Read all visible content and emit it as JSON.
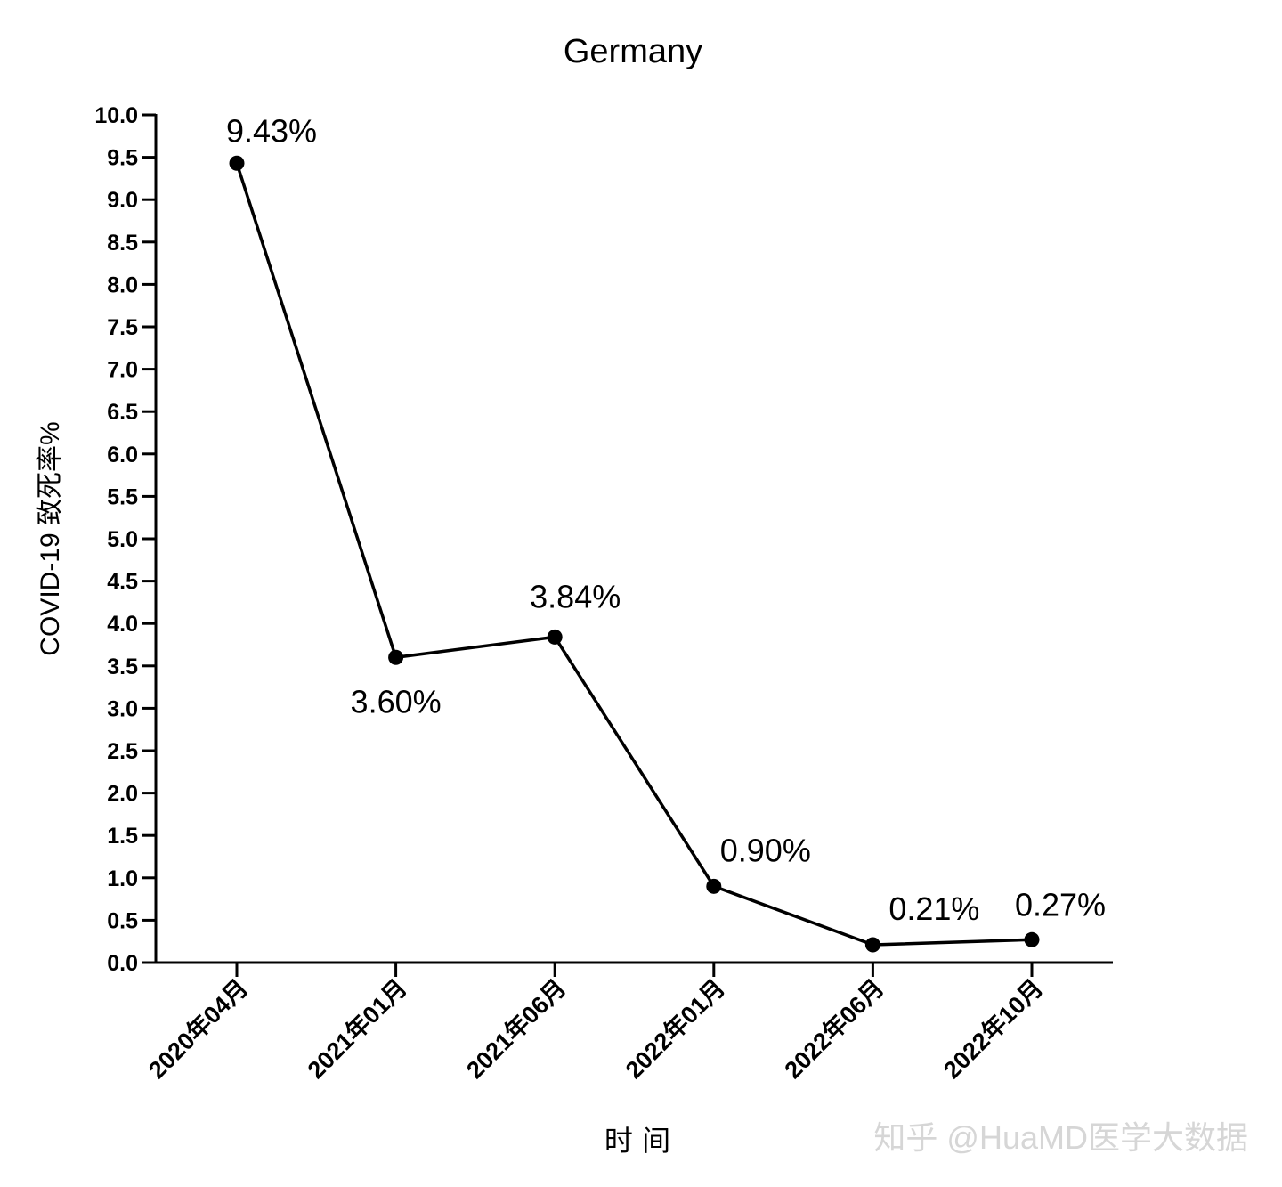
{
  "chart_data": {
    "type": "line",
    "title": "Germany",
    "xlabel": "时 间",
    "ylabel": "COVID-19 致死率%",
    "categories": [
      "2020年04月",
      "2021年01月",
      "2021年06月",
      "2022年01月",
      "2022年06月",
      "2022年10月"
    ],
    "series": [
      {
        "values": [
          9.43,
          3.6,
          3.84,
          0.9,
          0.21,
          0.27
        ],
        "data_labels": [
          "9.43%",
          "3.60%",
          "3.84%",
          "0.90%",
          "0.21%",
          "0.27%"
        ]
      }
    ],
    "ylim": [
      0,
      10
    ],
    "yticks": [
      "0.0",
      "0.5",
      "1.0",
      "1.5",
      "2.0",
      "2.5",
      "3.0",
      "3.5",
      "4.0",
      "4.5",
      "5.0",
      "5.5",
      "6.0",
      "6.5",
      "7.0",
      "7.5",
      "8.0",
      "8.5",
      "9.0",
      "9.5",
      "10.0"
    ],
    "grid": false,
    "line_color": "#000000",
    "marker_color": "#000000"
  },
  "watermark": "知乎 @HuaMD医学大数据"
}
